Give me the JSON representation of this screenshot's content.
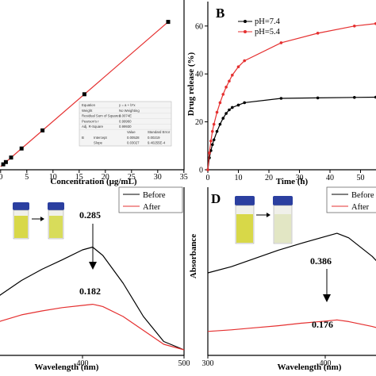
{
  "colors": {
    "red": "#e53030",
    "black": "#000000",
    "vial_liquid": "#d8d848",
    "vial_cap": "#2b3fa0",
    "fit_box": "#f4f4f4"
  },
  "chart_data": [
    {
      "panel": "A",
      "type": "scatter",
      "xlabel": "Concentration (μg/mL)",
      "ylabel": "",
      "xlim": [
        0,
        35
      ],
      "xticks": [
        "0",
        "5",
        "10",
        "15",
        "20",
        "25",
        "30",
        "35"
      ],
      "series": [
        {
          "x": [
            0.5,
            1,
            2,
            4,
            8,
            16,
            32
          ],
          "y": [
            0.015,
            0.03,
            0.06,
            0.12,
            0.24,
            0.48,
            0.96
          ]
        }
      ],
      "fit_table": {
        "rows": [
          [
            "Equation",
            "y = a + b*x"
          ],
          [
            "Weight",
            "No Weighting"
          ],
          [
            "Residual Sum of Squares",
            "3.0074E"
          ],
          [
            "Pearson's r",
            "0.99960"
          ],
          [
            "Adj. R-Square",
            "0.99930"
          ]
        ],
        "coef_header": [
          "",
          "Value",
          "Standard Error"
        ],
        "coef_rows": [
          [
            "B",
            "Intercept",
            "0.00528",
            "0.00219"
          ],
          [
            "",
            "Slope",
            "0.03027",
            "9.40255E-4"
          ]
        ]
      }
    },
    {
      "panel": "B",
      "type": "line",
      "xlabel": "Time (h)",
      "ylabel": "Drug release (%)",
      "xlim": [
        0,
        55
      ],
      "ylim": [
        0,
        65
      ],
      "xticks": [
        "0",
        "10",
        "20",
        "30",
        "40",
        "50"
      ],
      "yticks": [
        "0",
        "20",
        "40",
        "60"
      ],
      "series": [
        {
          "name": "pH=7.4",
          "color": "#000000",
          "x": [
            0,
            0.5,
            1,
            1.5,
            2,
            3,
            4,
            5,
            6,
            7,
            8,
            10,
            12,
            24,
            36,
            48,
            55
          ],
          "y": [
            0,
            5,
            8,
            10.5,
            12.5,
            16,
            19,
            21.5,
            23.5,
            25,
            26,
            27,
            28,
            29.8,
            30,
            30.2,
            30.3
          ]
        },
        {
          "name": "pH=5.4",
          "color": "#e53030",
          "x": [
            0,
            0.5,
            1,
            1.5,
            2,
            3,
            4,
            5,
            6,
            7,
            8,
            10,
            12,
            24,
            36,
            48,
            55
          ],
          "y": [
            0,
            7,
            12,
            16,
            19,
            24,
            28,
            31.5,
            34.5,
            37,
            39.5,
            43,
            45.5,
            53,
            57,
            60,
            61
          ]
        }
      ]
    },
    {
      "panel": "C",
      "type": "line",
      "xlabel": "Wavelength (nm)",
      "ylabel": "",
      "xlim": [
        300,
        500
      ],
      "xticks": [
        "400",
        "500"
      ],
      "series": [
        {
          "name": "Before",
          "color": "#000000",
          "x": [
            300,
            320,
            340,
            360,
            380,
            400,
            410,
            420,
            440,
            460,
            480,
            500
          ],
          "y": [
            0.175,
            0.2,
            0.225,
            0.245,
            0.262,
            0.28,
            0.285,
            0.27,
            0.22,
            0.16,
            0.115,
            0.1
          ]
        },
        {
          "name": "After",
          "color": "#e53030",
          "x": [
            300,
            320,
            340,
            360,
            380,
            400,
            410,
            420,
            440,
            460,
            480,
            500
          ],
          "y": [
            0.14,
            0.152,
            0.163,
            0.17,
            0.176,
            0.18,
            0.182,
            0.178,
            0.16,
            0.135,
            0.11,
            0.1
          ]
        }
      ],
      "annotations": [
        {
          "text": "0.285"
        },
        {
          "text": "0.182"
        }
      ]
    },
    {
      "panel": "D",
      "type": "line",
      "xlabel": "Wavelength (nm)",
      "ylabel": "Absorbance",
      "xlim": [
        300,
        470
      ],
      "xticks": [
        "300",
        "400"
      ],
      "series": [
        {
          "name": "Before",
          "color": "#000000",
          "x": [
            300,
            320,
            340,
            360,
            380,
            400,
            410,
            420,
            440,
            460,
            470
          ],
          "y": [
            0.29,
            0.305,
            0.325,
            0.345,
            0.362,
            0.378,
            0.386,
            0.375,
            0.33,
            0.27,
            0.245
          ]
        },
        {
          "name": "After",
          "color": "#e53030",
          "x": [
            300,
            320,
            340,
            360,
            380,
            400,
            410,
            420,
            440,
            460,
            470
          ],
          "y": [
            0.148,
            0.152,
            0.157,
            0.162,
            0.168,
            0.173,
            0.176,
            0.172,
            0.16,
            0.145,
            0.14
          ]
        }
      ],
      "annotations": [
        {
          "text": "0.386"
        },
        {
          "text": "0.176"
        }
      ]
    }
  ],
  "panel_labels": {
    "B": "B",
    "D": "D"
  }
}
